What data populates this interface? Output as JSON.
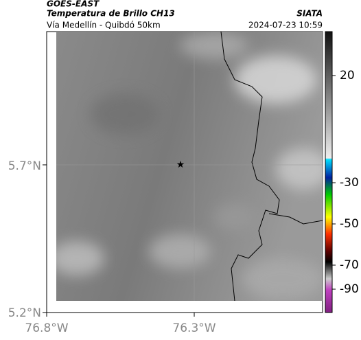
{
  "header": {
    "source": "GOES-EAST",
    "product": "Temperatura de Brillo CH13",
    "agency": "SIATA",
    "region": "Vía Medellín - Quibdó 50km",
    "datetime": "2024-07-23 10:59"
  },
  "map": {
    "y_labels": [
      "5.7°N",
      "5.2°N"
    ],
    "x_labels": [
      "76.8°W",
      "76.3°W"
    ]
  },
  "colorbar": {
    "ticks": [
      "20",
      "-30",
      "-50",
      "-70",
      "-90"
    ]
  }
}
